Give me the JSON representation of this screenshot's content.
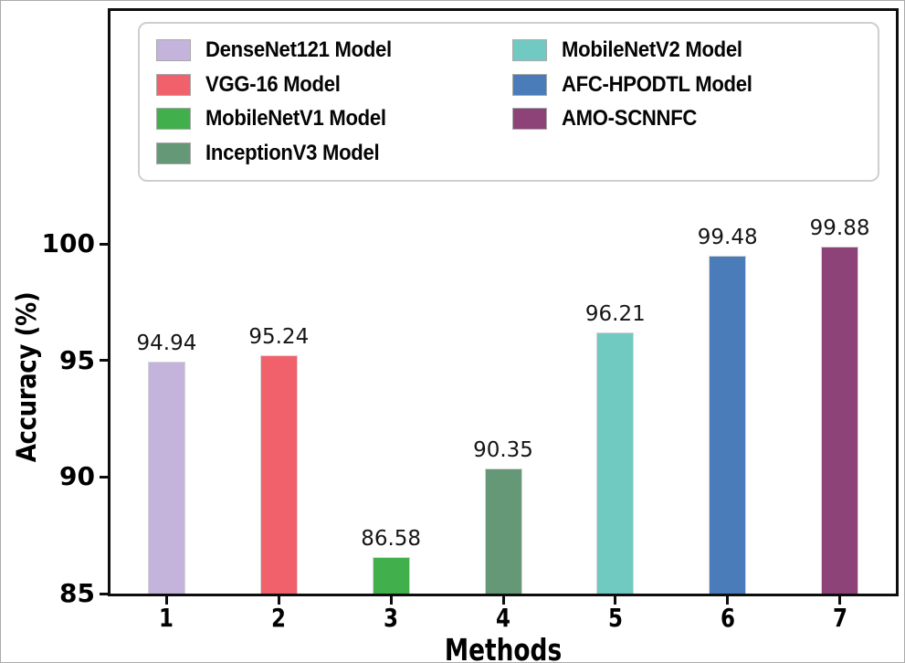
{
  "chart_data": {
    "type": "bar",
    "xlabel": "Methods",
    "ylabel": "Accuracy (%)",
    "categories": [
      "1",
      "2",
      "3",
      "4",
      "5",
      "6",
      "7"
    ],
    "values": [
      94.94,
      95.24,
      86.58,
      90.35,
      96.21,
      99.48,
      99.88
    ],
    "yticks": [
      85,
      90,
      95,
      100
    ],
    "ylim": [
      85,
      110
    ],
    "grid": false,
    "legend_position": "upper center inside, two columns, column-major",
    "series": [
      {
        "name": "DenseNet121 Model",
        "color": "#c4b4dc",
        "value": 94.94,
        "label": "94.94"
      },
      {
        "name": "VGG-16 Model",
        "color": "#f0616b",
        "value": 95.24,
        "label": "95.24"
      },
      {
        "name": "MobileNetV1 Model",
        "color": "#41af4c",
        "value": 86.58,
        "label": "86.58"
      },
      {
        "name": "InceptionV3 Model",
        "color": "#649877",
        "value": 90.35,
        "label": "90.35"
      },
      {
        "name": "MobileNetV2 Model",
        "color": "#70cac2",
        "value": 96.21,
        "label": "96.21"
      },
      {
        "name": "AFC-HPODTL Model",
        "color": "#4b7cba",
        "value": 99.48,
        "label": "99.48"
      },
      {
        "name": "AMO-SCNNFC",
        "color": "#8d4378",
        "value": 99.88,
        "label": "99.88"
      }
    ],
    "style": {
      "axis_color": "#0d0d0d",
      "bar_edge_color": "#d6d6d6",
      "legend_border_color": "#cfcfcf",
      "background": "#ffffff"
    }
  }
}
